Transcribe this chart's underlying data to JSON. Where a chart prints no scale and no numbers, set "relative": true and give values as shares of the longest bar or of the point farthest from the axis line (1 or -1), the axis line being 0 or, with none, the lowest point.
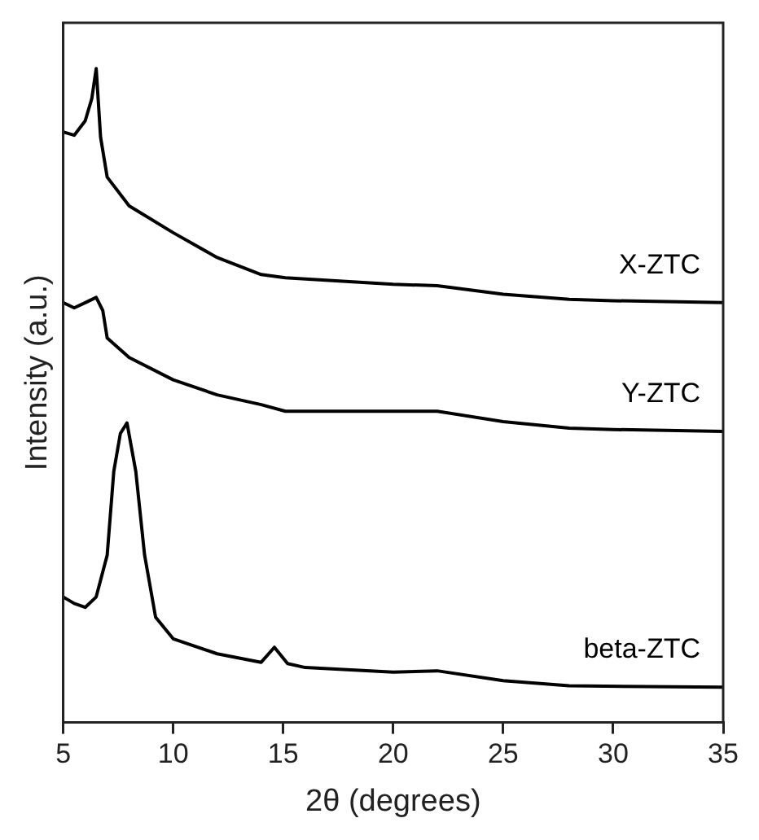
{
  "chart_data": {
    "type": "line",
    "xlabel": "2θ (degrees)",
    "ylabel": "Intensity (a.u.)",
    "relative": true,
    "xlim": [
      5,
      35
    ],
    "xticks": [
      5,
      10,
      15,
      20,
      25,
      30,
      35
    ],
    "tick_labels": "x",
    "grid": false,
    "legend": false,
    "marker": "none",
    "line_style": "solid",
    "series": [
      {
        "name": "X-ZTC",
        "color": "#000000",
        "x": [
          5,
          5.5,
          6,
          6.3,
          6.5,
          6.7,
          7,
          8,
          10,
          12,
          14,
          15.1,
          20,
          22,
          25,
          28,
          30,
          35
        ],
        "values": [
          0.903,
          0.898,
          0.92,
          0.954,
          1,
          0.895,
          0.834,
          0.79,
          0.749,
          0.711,
          0.685,
          0.68,
          0.67,
          0.668,
          0.655,
          0.647,
          0.645,
          0.642
        ]
      },
      {
        "name": "Y-ZTC",
        "color": "#000000",
        "x": [
          5,
          5.5,
          6,
          6.5,
          6.8,
          7,
          8,
          10,
          12,
          14,
          15.1,
          20,
          22,
          25,
          28,
          30,
          35
        ],
        "values": [
          0.642,
          0.634,
          0.642,
          0.65,
          0.63,
          0.588,
          0.558,
          0.524,
          0.501,
          0.486,
          0.476,
          0.476,
          0.476,
          0.46,
          0.45,
          0.448,
          0.445
        ]
      },
      {
        "name": "beta-ZTC",
        "color": "#000000",
        "x": [
          5,
          5.5,
          6,
          6.5,
          7,
          7.3,
          7.6,
          7.9,
          8.3,
          8.7,
          9.2,
          10,
          12,
          14,
          14.6,
          15.2,
          16,
          20,
          22,
          25,
          28,
          35
        ],
        "values": [
          0.192,
          0.182,
          0.176,
          0.192,
          0.256,
          0.384,
          0.442,
          0.458,
          0.384,
          0.256,
          0.161,
          0.128,
          0.105,
          0.092,
          0.115,
          0.09,
          0.084,
          0.077,
          0.079,
          0.064,
          0.056,
          0.054
        ]
      }
    ]
  }
}
